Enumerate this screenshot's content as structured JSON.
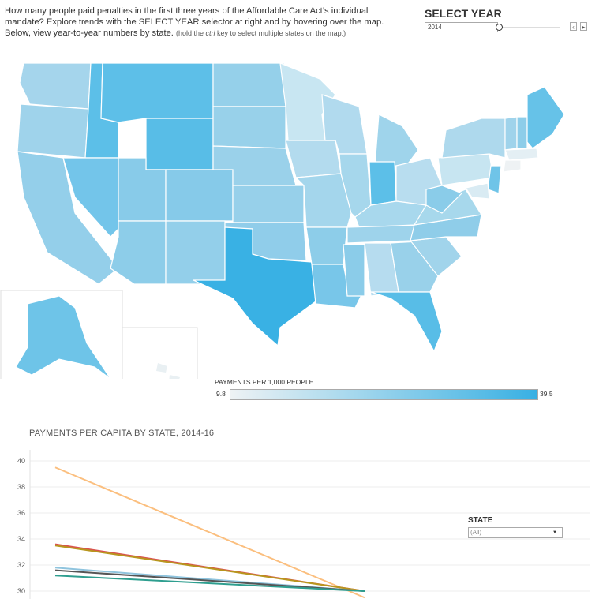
{
  "intro": {
    "line1": "How many people paid penalties in the first three years of the Affordable Care Act’s individual",
    "line2": "mandate? Explore trends with the SELECT YEAR selector at right and by hovering over the map.",
    "line3": "Below, view year-to-year numbers by state.",
    "hint_prefix": "(hold the ",
    "hint_key": "ctrl",
    "hint_suffix": " key to select multiple states on the map.)"
  },
  "select_year": {
    "title": "SELECT YEAR",
    "value": "2014",
    "prev_icon": "chevron-left",
    "next_icon": "chevron-right"
  },
  "map_legend": {
    "title": "PAYMENTS PER 1,000 PEOPLE",
    "min": "9.8",
    "max": "39.5",
    "color_min": "#eef2f4",
    "color_max": "#38b0e3"
  },
  "line_chart": {
    "title": "PAYMENTS PER CAPITA BY STATE, 2014-16",
    "state_filter_label": "STATE",
    "state_filter_value": "(All)"
  },
  "chart_data": {
    "type": "line",
    "title": "PAYMENTS PER CAPITA BY STATE, 2014-16",
    "ylim": [
      29,
      41
    ],
    "yticks": [
      "40",
      "38",
      "36",
      "34",
      "32",
      "30"
    ],
    "grid": true,
    "series": [
      {
        "color": "#fbbf7f",
        "values": [
          39.5,
          29.5
        ]
      },
      {
        "color": "#d9534f",
        "values": [
          33.6,
          30.0
        ]
      },
      {
        "color": "#b8961e",
        "values": [
          33.5,
          30.0
        ]
      },
      {
        "color": "#8fc4de",
        "values": [
          31.8,
          30.0
        ]
      },
      {
        "color": "#555555",
        "values": [
          31.6,
          30.0
        ]
      },
      {
        "color": "#2e9e8f",
        "values": [
          31.2,
          30.0
        ]
      }
    ]
  }
}
